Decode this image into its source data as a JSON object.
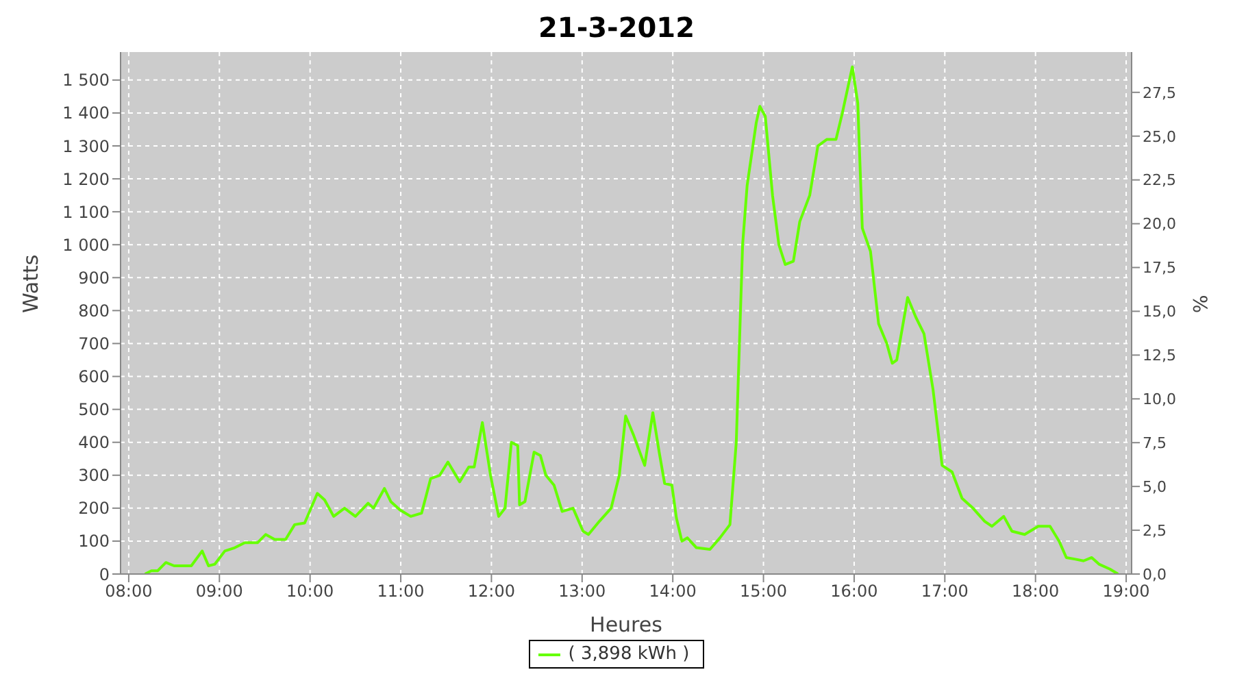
{
  "chart_data": {
    "type": "line",
    "title": "21-3-2012",
    "xlabel": "Heures",
    "ylabel": "Watts",
    "y2label": "%",
    "x": [
      8.18,
      8.25,
      8.32,
      8.41,
      8.5,
      8.69,
      8.81,
      8.88,
      8.95,
      9.06,
      9.17,
      9.28,
      9.42,
      9.51,
      9.61,
      9.73,
      9.83,
      9.94,
      10.08,
      10.16,
      10.26,
      10.38,
      10.5,
      10.64,
      10.7,
      10.82,
      10.89,
      10.99,
      11.11,
      11.23,
      11.33,
      11.43,
      11.52,
      11.65,
      11.75,
      11.81,
      11.9,
      11.99,
      12.08,
      12.15,
      12.22,
      12.29,
      12.31,
      12.37,
      12.47,
      12.54,
      12.6,
      12.69,
      12.78,
      12.9,
      13.01,
      13.07,
      13.19,
      13.32,
      13.41,
      13.48,
      13.57,
      13.69,
      13.78,
      13.85,
      13.91,
      13.99,
      14.04,
      14.1,
      14.16,
      14.26,
      14.41,
      14.52,
      14.63,
      14.7,
      14.77,
      14.82,
      14.92,
      14.96,
      15.02,
      15.1,
      15.17,
      15.24,
      15.33,
      15.4,
      15.51,
      15.6,
      15.7,
      15.8,
      15.87,
      15.98,
      16.04,
      16.09,
      16.18,
      16.27,
      16.36,
      16.42,
      16.47,
      16.59,
      16.68,
      16.77,
      16.87,
      16.97,
      17.08,
      17.19,
      17.31,
      17.44,
      17.52,
      17.65,
      17.74,
      17.88,
      18.03,
      18.16,
      18.26,
      18.34,
      18.44,
      18.53,
      18.62,
      18.7,
      18.82,
      18.91
    ],
    "series": [
      {
        "name": "( 3,898 kWh )",
        "color": "#66ff00",
        "values": [
          0,
          10,
          10,
          35,
          25,
          25,
          70,
          25,
          30,
          70,
          80,
          95,
          95,
          120,
          105,
          105,
          150,
          155,
          245,
          225,
          175,
          200,
          175,
          215,
          200,
          260,
          220,
          195,
          175,
          185,
          290,
          300,
          340,
          280,
          325,
          325,
          460,
          300,
          175,
          200,
          400,
          390,
          210,
          220,
          370,
          360,
          300,
          270,
          190,
          200,
          130,
          120,
          160,
          200,
          300,
          480,
          420,
          330,
          490,
          370,
          275,
          270,
          170,
          100,
          110,
          80,
          75,
          110,
          150,
          400,
          1000,
          1180,
          1370,
          1420,
          1390,
          1150,
          1000,
          940,
          950,
          1070,
          1150,
          1300,
          1320,
          1320,
          1400,
          1540,
          1430,
          1050,
          980,
          760,
          700,
          640,
          650,
          840,
          780,
          730,
          560,
          330,
          310,
          230,
          200,
          160,
          145,
          175,
          130,
          120,
          145,
          145,
          100,
          50,
          45,
          40,
          50,
          30,
          15,
          0
        ]
      }
    ],
    "xlim": [
      7.91,
      19.06
    ],
    "xticks": [
      {
        "value": 8,
        "label": "08:00"
      },
      {
        "value": 9,
        "label": "09:00"
      },
      {
        "value": 10,
        "label": "10:00"
      },
      {
        "value": 11,
        "label": "11:00"
      },
      {
        "value": 12,
        "label": "12:00"
      },
      {
        "value": 13,
        "label": "13:00"
      },
      {
        "value": 14,
        "label": "14:00"
      },
      {
        "value": 15,
        "label": "15:00"
      },
      {
        "value": 16,
        "label": "16:00"
      },
      {
        "value": 17,
        "label": "17:00"
      },
      {
        "value": 18,
        "label": "18:00"
      },
      {
        "value": 19,
        "label": "19:00"
      }
    ],
    "ylim": [
      0,
      1585
    ],
    "yticks": [
      0,
      100,
      200,
      300,
      400,
      500,
      600,
      700,
      800,
      900,
      {
        "value": 1000,
        "label": "1 000"
      },
      {
        "value": 1100,
        "label": "1 100"
      },
      {
        "value": 1200,
        "label": "1 200"
      },
      {
        "value": 1300,
        "label": "1 300"
      },
      {
        "value": 1400,
        "label": "1 400"
      },
      {
        "value": 1500,
        "label": "1 500"
      }
    ],
    "y2lim": [
      0,
      29.8
    ],
    "y2ticks": [
      {
        "value": 0,
        "label": "0,0"
      },
      {
        "value": 2.5,
        "label": "2,5"
      },
      {
        "value": 5,
        "label": "5,0"
      },
      {
        "value": 7.5,
        "label": "7,5"
      },
      {
        "value": 10,
        "label": "10,0"
      },
      {
        "value": 12.5,
        "label": "12,5"
      },
      {
        "value": 15,
        "label": "15,0"
      },
      {
        "value": 17.5,
        "label": "17,5"
      },
      {
        "value": 20,
        "label": "20,0"
      },
      {
        "value": 22.5,
        "label": "22,5"
      },
      {
        "value": 25,
        "label": "25,0"
      },
      {
        "value": 27.5,
        "label": "27,5"
      }
    ],
    "grid": true,
    "legend": "bottom",
    "marker": "none",
    "line_style": "solid"
  }
}
